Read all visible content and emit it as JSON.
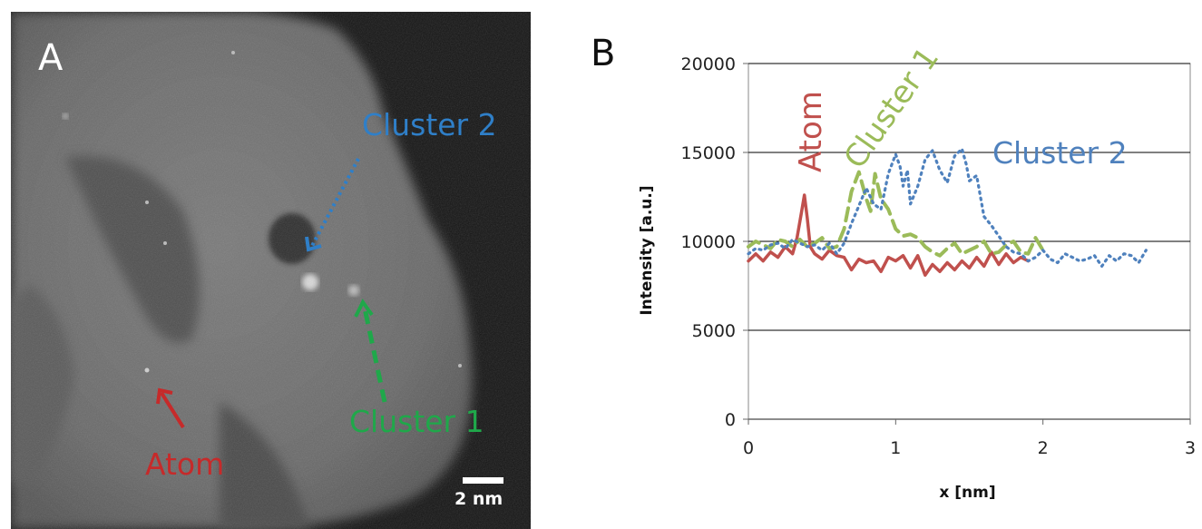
{
  "panel_a": {
    "label": "A",
    "annotations": {
      "cluster2": "Cluster 2",
      "cluster1": "Cluster 1",
      "atom": "Atom"
    },
    "scale_bar": "2 nm",
    "colors": {
      "cluster2": "#2f7fc8",
      "cluster1": "#1fa84a",
      "atom": "#c62a2a"
    }
  },
  "panel_b": {
    "label": "B"
  },
  "chart_data": {
    "type": "line",
    "title": "",
    "xlabel": "x [nm]",
    "ylabel": "Intensity [a.u.]",
    "xlim": [
      0,
      3
    ],
    "ylim": [
      0,
      20000
    ],
    "x_ticks": [
      "0",
      "1",
      "2",
      "3"
    ],
    "y_ticks": [
      "0",
      "5000",
      "10000",
      "15000",
      "20000"
    ],
    "grid": "horizontal",
    "legend": "in-plot labels",
    "series": [
      {
        "name": "Atom",
        "color": "#c0504d",
        "style": "solid",
        "x": [
          0,
          0.05,
          0.1,
          0.15,
          0.2,
          0.25,
          0.3,
          0.33,
          0.36,
          0.38,
          0.4,
          0.42,
          0.45,
          0.5,
          0.55,
          0.6,
          0.65,
          0.7,
          0.75,
          0.8,
          0.85,
          0.9,
          0.95,
          1.0,
          1.05,
          1.1,
          1.15,
          1.2,
          1.25,
          1.3,
          1.35,
          1.4,
          1.45,
          1.5,
          1.55,
          1.6,
          1.65,
          1.7,
          1.75,
          1.8,
          1.85,
          1.9
        ],
        "values": [
          8900,
          9300,
          8900,
          9400,
          9100,
          9700,
          9300,
          10200,
          11600,
          12600,
          11300,
          9700,
          9300,
          9000,
          9500,
          9200,
          9100,
          8400,
          9000,
          8800,
          8900,
          8300,
          9100,
          8900,
          9200,
          8500,
          9200,
          8100,
          8700,
          8300,
          8800,
          8400,
          8900,
          8500,
          9100,
          8600,
          9400,
          8700,
          9300,
          8800,
          9100,
          8900
        ]
      },
      {
        "name": "Cluster 1",
        "color": "#9bbb59",
        "style": "dashed",
        "x": [
          0,
          0.05,
          0.1,
          0.15,
          0.2,
          0.25,
          0.3,
          0.35,
          0.4,
          0.45,
          0.5,
          0.55,
          0.6,
          0.65,
          0.7,
          0.75,
          0.8,
          0.83,
          0.86,
          0.9,
          0.95,
          1.0,
          1.05,
          1.1,
          1.15,
          1.2,
          1.25,
          1.3,
          1.35,
          1.4,
          1.45,
          1.5,
          1.55,
          1.6,
          1.65,
          1.7,
          1.75,
          1.8,
          1.85,
          1.9,
          1.95,
          2.0
        ],
        "values": [
          9700,
          10000,
          9800,
          9600,
          10100,
          10000,
          9700,
          10100,
          9700,
          9900,
          10200,
          9600,
          9700,
          10700,
          12800,
          13900,
          12400,
          11700,
          13800,
          12400,
          11800,
          10700,
          10300,
          10400,
          10200,
          9700,
          9400,
          9200,
          9600,
          9900,
          9300,
          9500,
          9700,
          10000,
          9300,
          9400,
          9800,
          10000,
          9400,
          9300,
          10200,
          9500
        ]
      },
      {
        "name": "Cluster 2",
        "color": "#4f81bd",
        "style": "dotted",
        "x": [
          0,
          0.05,
          0.1,
          0.15,
          0.2,
          0.25,
          0.3,
          0.35,
          0.4,
          0.45,
          0.5,
          0.55,
          0.6,
          0.65,
          0.7,
          0.75,
          0.8,
          0.85,
          0.9,
          0.95,
          1.0,
          1.03,
          1.05,
          1.08,
          1.1,
          1.15,
          1.2,
          1.25,
          1.3,
          1.35,
          1.4,
          1.45,
          1.48,
          1.5,
          1.55,
          1.6,
          1.65,
          1.7,
          1.75,
          1.8,
          1.85,
          1.9,
          1.95,
          2.0,
          2.05,
          2.1,
          2.15,
          2.2,
          2.25,
          2.3,
          2.35,
          2.4,
          2.45,
          2.5,
          2.55,
          2.6,
          2.65,
          2.7
        ],
        "values": [
          9300,
          9600,
          9500,
          9800,
          9900,
          9600,
          10100,
          9900,
          9700,
          9800,
          9500,
          9900,
          9300,
          9900,
          11000,
          12000,
          13000,
          12100,
          11800,
          13800,
          14900,
          14200,
          13100,
          14000,
          12100,
          13100,
          14600,
          15100,
          14000,
          13300,
          14800,
          15200,
          14300,
          13400,
          13700,
          11400,
          10900,
          10300,
          9700,
          9400,
          9300,
          8900,
          9100,
          9500,
          9000,
          8800,
          9300,
          9100,
          8900,
          9000,
          9200,
          8600,
          9200,
          8900,
          9300,
          9200,
          8800,
          9500
        ]
      }
    ],
    "annotations": [
      {
        "text": "Atom",
        "color": "#c0504d"
      },
      {
        "text": "Cluster 1",
        "color": "#9bbb59"
      },
      {
        "text": "Cluster 2",
        "color": "#4f81bd"
      }
    ]
  }
}
